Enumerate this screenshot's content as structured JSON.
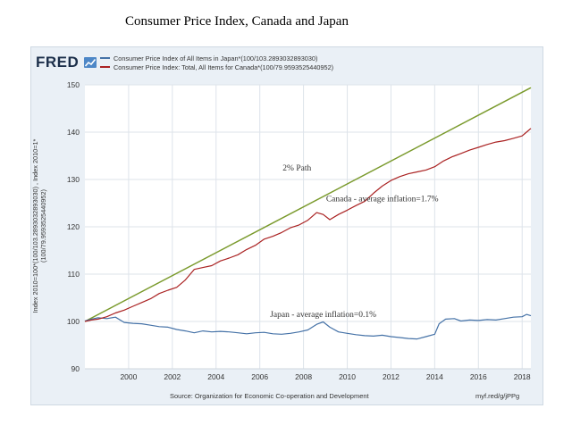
{
  "page_title": "Consumer Price Index, Canada and Japan",
  "logo_text": "FRED",
  "source": "Source: Organization for Economic Co-operation and Development",
  "shortlink": "myf.red/g/jPPg",
  "chart_data": {
    "type": "line",
    "ylabel": "Index 2010=100*(100/103.2893032893030) , Index 2010=1* (100/79.9593525440952)",
    "ylim": [
      90,
      150
    ],
    "y_ticks": [
      90,
      100,
      110,
      120,
      130,
      140,
      150
    ],
    "xlim": [
      1998,
      2018.4
    ],
    "x_ticks": [
      2000,
      2002,
      2004,
      2006,
      2008,
      2010,
      2012,
      2014,
      2016,
      2018
    ],
    "x_tick_labels": [
      "2000",
      "2002",
      "2004",
      "2006",
      "2008",
      "2010",
      "2012",
      "2014",
      "2016",
      "2018"
    ],
    "grid": true,
    "legend_position": "top-left",
    "series": [
      {
        "name": "Consumer Price Index of All Items in Japan*(100/103.2893032893030)",
        "color": "#4572a7",
        "x": [
          1998.0,
          1998.3,
          1998.6,
          1999.0,
          1999.4,
          1999.8,
          2000.2,
          2000.6,
          2001.0,
          2001.4,
          2001.8,
          2002.2,
          2002.6,
          2003.0,
          2003.4,
          2003.8,
          2004.2,
          2004.6,
          2005.0,
          2005.4,
          2005.8,
          2006.2,
          2006.6,
          2007.0,
          2007.4,
          2007.8,
          2008.2,
          2008.6,
          2008.9,
          2009.2,
          2009.6,
          2010.0,
          2010.4,
          2010.8,
          2011.2,
          2011.6,
          2012.0,
          2012.4,
          2012.8,
          2013.2,
          2013.6,
          2014.0,
          2014.2,
          2014.5,
          2014.9,
          2015.2,
          2015.6,
          2016.0,
          2016.4,
          2016.8,
          2017.2,
          2017.6,
          2018.0,
          2018.2,
          2018.4
        ],
        "values": [
          100.1,
          100.5,
          100.8,
          100.6,
          100.9,
          99.8,
          99.6,
          99.5,
          99.2,
          98.9,
          98.8,
          98.3,
          98.0,
          97.6,
          98.0,
          97.8,
          97.9,
          97.8,
          97.6,
          97.4,
          97.6,
          97.7,
          97.4,
          97.3,
          97.5,
          97.8,
          98.2,
          99.4,
          99.9,
          98.8,
          97.8,
          97.5,
          97.2,
          97.0,
          96.9,
          97.1,
          96.8,
          96.6,
          96.4,
          96.3,
          96.8,
          97.3,
          99.5,
          100.5,
          100.6,
          100.1,
          100.3,
          100.2,
          100.4,
          100.3,
          100.6,
          100.9,
          101.0,
          101.5,
          101.2
        ]
      },
      {
        "name": "Consumer Price Index: Total, All Items for Canada*(100/79.9593525440952)",
        "color": "#aa2222",
        "x": [
          1998.0,
          1998.3,
          1998.6,
          1999.0,
          1999.4,
          1999.8,
          2000.2,
          2000.6,
          2001.0,
          2001.4,
          2001.8,
          2002.2,
          2002.6,
          2003.0,
          2003.4,
          2003.8,
          2004.2,
          2004.6,
          2005.0,
          2005.4,
          2005.8,
          2006.2,
          2006.6,
          2007.0,
          2007.4,
          2007.8,
          2008.2,
          2008.6,
          2008.9,
          2009.2,
          2009.6,
          2010.0,
          2010.4,
          2010.8,
          2011.2,
          2011.6,
          2012.0,
          2012.4,
          2012.8,
          2013.2,
          2013.6,
          2014.0,
          2014.4,
          2014.8,
          2015.2,
          2015.6,
          2016.0,
          2016.4,
          2016.8,
          2017.2,
          2017.6,
          2018.0,
          2018.2,
          2018.4
        ],
        "values": [
          100.0,
          100.3,
          100.5,
          101.0,
          101.8,
          102.4,
          103.2,
          104.0,
          104.8,
          105.9,
          106.6,
          107.2,
          108.8,
          111.0,
          111.4,
          111.8,
          112.8,
          113.4,
          114.1,
          115.2,
          116.1,
          117.4,
          118.0,
          118.8,
          119.8,
          120.4,
          121.4,
          123.0,
          122.6,
          121.5,
          122.6,
          123.5,
          124.5,
          125.4,
          127.1,
          128.6,
          129.8,
          130.6,
          131.2,
          131.6,
          132.0,
          132.7,
          133.9,
          134.8,
          135.5,
          136.2,
          136.8,
          137.4,
          137.9,
          138.2,
          138.7,
          139.2,
          140.0,
          140.8
        ]
      },
      {
        "name": "2% Path",
        "color": "#7a9a2c",
        "x": [
          1998.0,
          2018.4
        ],
        "values": [
          100.0,
          149.4
        ]
      }
    ],
    "annotations": [
      {
        "text": "2% Path",
        "x": 2007.7,
        "y": 131.9
      },
      {
        "text": "Canada - average inflation=1.7%",
        "x": 2011.6,
        "y": 125.4
      },
      {
        "text": "Japan - average inflation=0.1%",
        "x": 2008.9,
        "y": 100.9
      }
    ]
  }
}
